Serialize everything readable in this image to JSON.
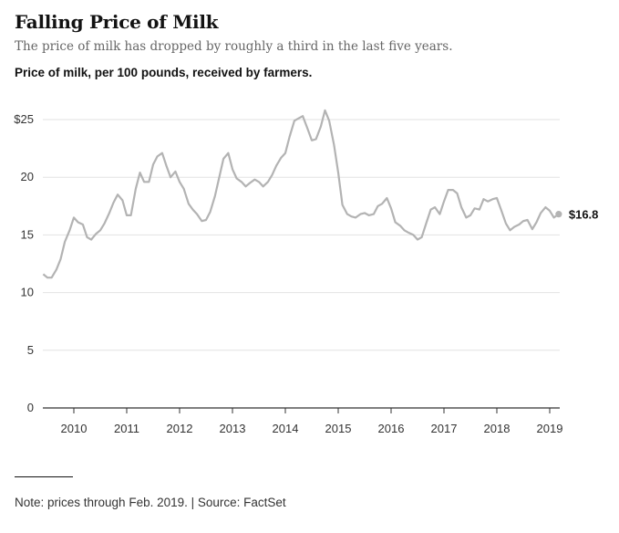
{
  "title": "Falling Price of Milk",
  "subtitle": "The price of milk has dropped by roughly a third in the last five years.",
  "chart_label": "Price of milk, per 100 pounds, received by farmers.",
  "note": "Note: prices through Feb. 2019. | Source: FactSet",
  "end_label": "$16.8",
  "colors": {
    "line": "#b3b3b3",
    "grid": "#e2e2e2",
    "axis": "#333333",
    "text": "#121212"
  },
  "chart_data": {
    "type": "line",
    "ylim": [
      0,
      25
    ],
    "xlim": [
      2009.42,
      2019.17
    ],
    "y_ticks": [
      {
        "value": 25,
        "label": "$25"
      },
      {
        "value": 20,
        "label": "20"
      },
      {
        "value": 15,
        "label": "15"
      },
      {
        "value": 10,
        "label": "10"
      },
      {
        "value": 5,
        "label": "5"
      },
      {
        "value": 0,
        "label": "0"
      }
    ],
    "x_ticks": [
      {
        "value": 2010,
        "label": "2010"
      },
      {
        "value": 2011,
        "label": "2011"
      },
      {
        "value": 2012,
        "label": "2012"
      },
      {
        "value": 2013,
        "label": "2013"
      },
      {
        "value": 2014,
        "label": "2014"
      },
      {
        "value": 2015,
        "label": "2015"
      },
      {
        "value": 2016,
        "label": "2016"
      },
      {
        "value": 2017,
        "label": "2017"
      },
      {
        "value": 2018,
        "label": "2018"
      },
      {
        "value": 2019,
        "label": "2019"
      }
    ],
    "grid": true,
    "series": [
      {
        "points": [
          [
            2009.42,
            11.6
          ],
          [
            2009.5,
            11.3
          ],
          [
            2009.58,
            11.3
          ],
          [
            2009.67,
            12.0
          ],
          [
            2009.75,
            12.9
          ],
          [
            2009.83,
            14.4
          ],
          [
            2009.92,
            15.4
          ],
          [
            2010.0,
            16.5
          ],
          [
            2010.08,
            16.1
          ],
          [
            2010.17,
            15.9
          ],
          [
            2010.25,
            14.8
          ],
          [
            2010.33,
            14.6
          ],
          [
            2010.42,
            15.1
          ],
          [
            2010.5,
            15.4
          ],
          [
            2010.58,
            16.0
          ],
          [
            2010.67,
            16.9
          ],
          [
            2010.75,
            17.8
          ],
          [
            2010.83,
            18.5
          ],
          [
            2010.92,
            18.0
          ],
          [
            2011.0,
            16.7
          ],
          [
            2011.08,
            16.7
          ],
          [
            2011.17,
            19.0
          ],
          [
            2011.25,
            20.4
          ],
          [
            2011.33,
            19.6
          ],
          [
            2011.42,
            19.6
          ],
          [
            2011.5,
            21.1
          ],
          [
            2011.58,
            21.8
          ],
          [
            2011.67,
            22.1
          ],
          [
            2011.75,
            21.0
          ],
          [
            2011.83,
            20.0
          ],
          [
            2011.92,
            20.5
          ],
          [
            2012.0,
            19.6
          ],
          [
            2012.08,
            19.0
          ],
          [
            2012.17,
            17.7
          ],
          [
            2012.25,
            17.2
          ],
          [
            2012.33,
            16.8
          ],
          [
            2012.42,
            16.2
          ],
          [
            2012.5,
            16.3
          ],
          [
            2012.58,
            17.0
          ],
          [
            2012.67,
            18.4
          ],
          [
            2012.75,
            20.0
          ],
          [
            2012.83,
            21.6
          ],
          [
            2012.92,
            22.1
          ],
          [
            2013.0,
            20.7
          ],
          [
            2013.08,
            19.9
          ],
          [
            2013.17,
            19.6
          ],
          [
            2013.25,
            19.2
          ],
          [
            2013.33,
            19.5
          ],
          [
            2013.42,
            19.8
          ],
          [
            2013.5,
            19.6
          ],
          [
            2013.58,
            19.2
          ],
          [
            2013.67,
            19.6
          ],
          [
            2013.75,
            20.2
          ],
          [
            2013.83,
            21.0
          ],
          [
            2013.92,
            21.7
          ],
          [
            2014.0,
            22.1
          ],
          [
            2014.08,
            23.5
          ],
          [
            2014.17,
            24.9
          ],
          [
            2014.25,
            25.1
          ],
          [
            2014.33,
            25.3
          ],
          [
            2014.42,
            24.2
          ],
          [
            2014.5,
            23.2
          ],
          [
            2014.58,
            23.3
          ],
          [
            2014.67,
            24.4
          ],
          [
            2014.75,
            25.8
          ],
          [
            2014.83,
            24.9
          ],
          [
            2014.92,
            22.8
          ],
          [
            2015.0,
            20.4
          ],
          [
            2015.08,
            17.6
          ],
          [
            2015.17,
            16.8
          ],
          [
            2015.25,
            16.6
          ],
          [
            2015.33,
            16.5
          ],
          [
            2015.42,
            16.8
          ],
          [
            2015.5,
            16.9
          ],
          [
            2015.58,
            16.7
          ],
          [
            2015.67,
            16.8
          ],
          [
            2015.75,
            17.5
          ],
          [
            2015.83,
            17.7
          ],
          [
            2015.92,
            18.2
          ],
          [
            2016.0,
            17.3
          ],
          [
            2016.08,
            16.1
          ],
          [
            2016.17,
            15.8
          ],
          [
            2016.25,
            15.4
          ],
          [
            2016.33,
            15.2
          ],
          [
            2016.42,
            15.0
          ],
          [
            2016.5,
            14.6
          ],
          [
            2016.58,
            14.8
          ],
          [
            2016.67,
            16.1
          ],
          [
            2016.75,
            17.2
          ],
          [
            2016.83,
            17.4
          ],
          [
            2016.92,
            16.8
          ],
          [
            2017.0,
            17.9
          ],
          [
            2017.08,
            18.9
          ],
          [
            2017.17,
            18.9
          ],
          [
            2017.25,
            18.6
          ],
          [
            2017.33,
            17.4
          ],
          [
            2017.42,
            16.5
          ],
          [
            2017.5,
            16.7
          ],
          [
            2017.58,
            17.3
          ],
          [
            2017.67,
            17.2
          ],
          [
            2017.75,
            18.1
          ],
          [
            2017.83,
            17.9
          ],
          [
            2017.92,
            18.1
          ],
          [
            2018.0,
            18.2
          ],
          [
            2018.08,
            17.2
          ],
          [
            2018.17,
            16.0
          ],
          [
            2018.25,
            15.4
          ],
          [
            2018.33,
            15.7
          ],
          [
            2018.42,
            15.9
          ],
          [
            2018.5,
            16.2
          ],
          [
            2018.58,
            16.3
          ],
          [
            2018.67,
            15.5
          ],
          [
            2018.75,
            16.1
          ],
          [
            2018.83,
            16.9
          ],
          [
            2018.92,
            17.4
          ],
          [
            2019.0,
            17.1
          ],
          [
            2019.08,
            16.5
          ],
          [
            2019.17,
            16.8
          ]
        ]
      }
    ]
  }
}
